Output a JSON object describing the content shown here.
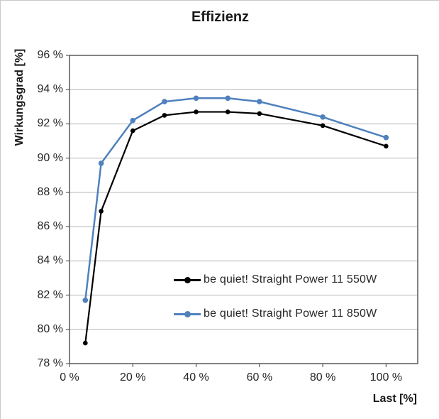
{
  "title": "Effizienz",
  "y_axis": {
    "label": "Wirkungsgrad [%]",
    "tick_values": [
      96,
      94,
      92,
      90,
      88,
      86,
      84,
      82,
      80,
      78
    ],
    "tick_labels": [
      "96 %",
      "94 %",
      "92 %",
      "90 %",
      "88 %",
      "86 %",
      "84 %",
      "82 %",
      "80 %",
      "78 %"
    ]
  },
  "x_axis": {
    "label": "Last [%]",
    "tick_values": [
      0,
      20,
      40,
      60,
      80,
      100
    ],
    "tick_labels": [
      "0 %",
      "20 %",
      "40 %",
      "60 %",
      "80 %",
      "100 %"
    ]
  },
  "legend": {
    "entries": [
      {
        "label": "be quiet! Straight Power 11 550W",
        "color": "#000000"
      },
      {
        "label": "be quiet! Straight Power 11 850W",
        "color": "#4f81bd"
      }
    ]
  },
  "colors": {
    "series_black": "#000000",
    "series_blue": "#4f81bd",
    "gridline": "#b3b3b3",
    "axis_border": "#595959",
    "text": "#262626",
    "background": "#ffffff"
  },
  "chart_data": {
    "type": "line",
    "title": "Effizienz",
    "xlabel": "Last [%]",
    "ylabel": "Wirkungsgrad [%]",
    "x": [
      5,
      10,
      20,
      30,
      40,
      50,
      60,
      80,
      100
    ],
    "series": [
      {
        "name": "be quiet! Straight Power 11 550W",
        "color": "#000000",
        "values": [
          79.2,
          86.9,
          91.6,
          92.5,
          92.7,
          92.7,
          92.6,
          91.9,
          90.7
        ]
      },
      {
        "name": "be quiet! Straight Power 11 850W",
        "color": "#4f81bd",
        "values": [
          81.7,
          89.7,
          92.2,
          93.3,
          93.5,
          93.5,
          93.3,
          92.4,
          91.2
        ]
      }
    ],
    "xlim": [
      0,
      110
    ],
    "ylim": [
      78,
      96
    ],
    "y_step": 2,
    "grid": "horizontal",
    "legend_position": "inside-bottom-right"
  }
}
